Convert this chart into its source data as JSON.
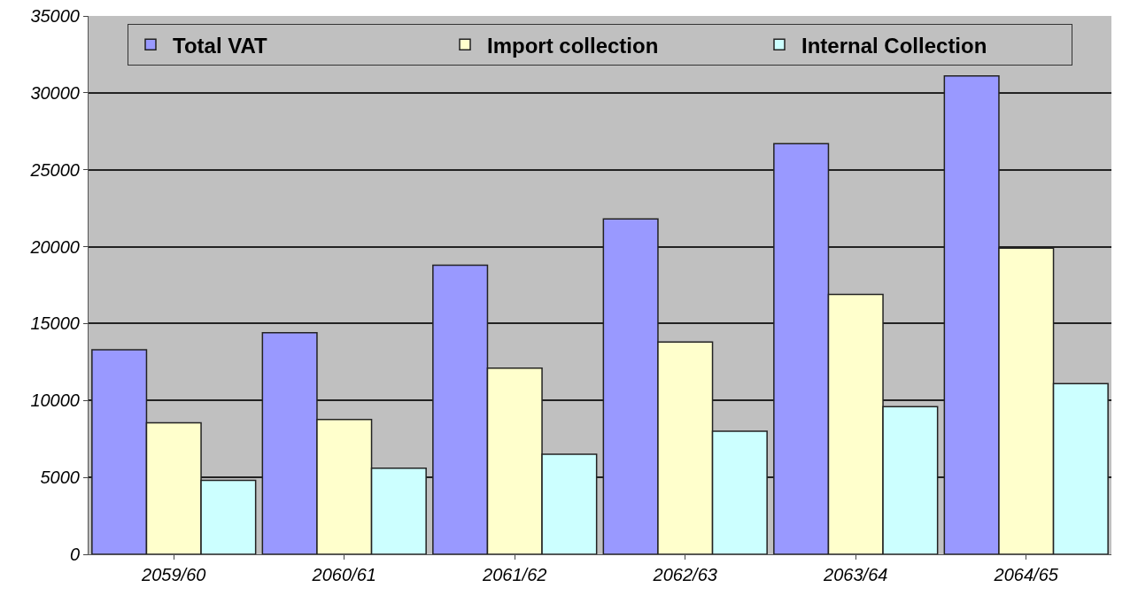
{
  "chart_data": {
    "type": "bar",
    "categories": [
      "2059/60",
      "2060/61",
      "2061/62",
      "2062/63",
      "2063/64",
      "2064/65"
    ],
    "series": [
      {
        "name": "Total VAT",
        "color": "#9999ff",
        "values": [
          13300,
          14400,
          18800,
          21800,
          26700,
          31100
        ]
      },
      {
        "name": "Import collection",
        "color": "#ffffcc",
        "values": [
          8550,
          8770,
          12100,
          13800,
          16900,
          19900
        ]
      },
      {
        "name": "Internal Collection",
        "color": "#ccffff",
        "values": [
          4800,
          5600,
          6500,
          8000,
          9600,
          11100
        ]
      }
    ],
    "ylim": [
      0,
      35000
    ],
    "yticks": [
      0,
      5000,
      10000,
      15000,
      20000,
      25000,
      30000,
      35000
    ],
    "grid": "y",
    "legend": "top"
  }
}
